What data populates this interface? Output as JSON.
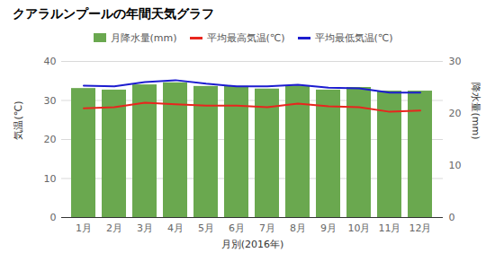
{
  "chart_data": {
    "type": "bar",
    "title": "クアラルンプールの年間天気グラフ",
    "x_label": "月別(2016年)",
    "y_label": "気温(℃)",
    "y2_label": "降水量(mm)",
    "categories": [
      "1月",
      "2月",
      "3月",
      "4月",
      "5月",
      "6月",
      "7月",
      "8月",
      "9月",
      "10月",
      "11月",
      "12月"
    ],
    "series": [
      {
        "name": "月降水量(mm)",
        "type": "bar",
        "color": "#6aa84f",
        "axis": "y2",
        "values": [
          24.8,
          24.5,
          25.5,
          25.9,
          25.2,
          25.2,
          24.7,
          25.3,
          24.5,
          25.0,
          24.3,
          24.3
        ]
      },
      {
        "name": "平均最高気温(℃)",
        "type": "line",
        "color": "#e8251e",
        "values": [
          28.0,
          28.3,
          29.4,
          29.0,
          28.7,
          28.7,
          28.3,
          29.2,
          28.5,
          28.3,
          27.1,
          27.4
        ]
      },
      {
        "name": "平均最低気温(℃)",
        "type": "line",
        "color": "#1c1ccf",
        "values": [
          33.8,
          33.6,
          34.7,
          35.2,
          34.3,
          33.6,
          33.6,
          34.0,
          33.3,
          33.1,
          32.0,
          32.0
        ]
      }
    ],
    "ylim": [
      0,
      40
    ],
    "yticks": [
      0,
      10,
      20,
      30,
      40
    ],
    "y2lim": [
      0,
      30
    ],
    "y2ticks": [
      0,
      10,
      20,
      30
    ],
    "grid": true,
    "legend": "top"
  }
}
